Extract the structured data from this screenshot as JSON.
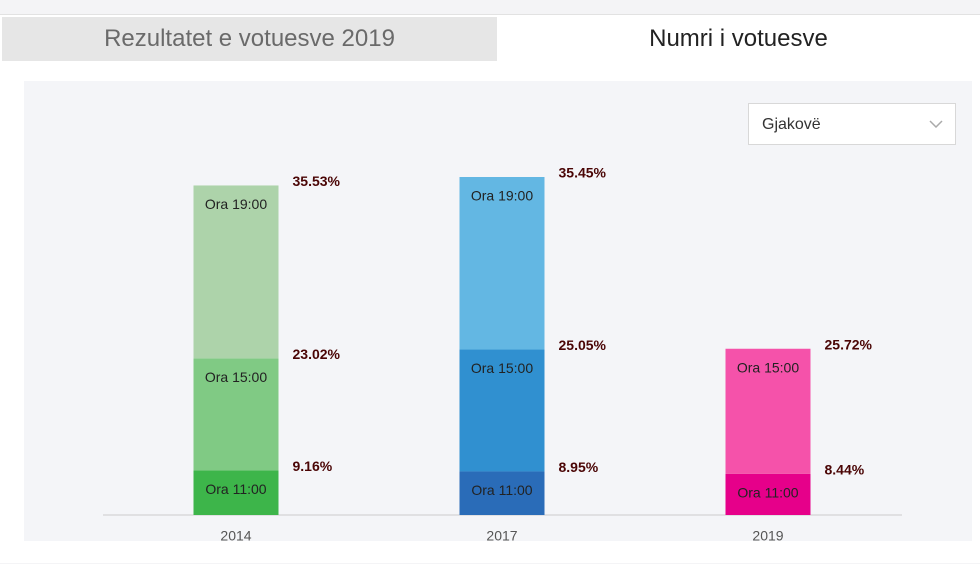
{
  "tabs": [
    "Rezultatet e votuesve 2019",
    "Numri i votuesve"
  ],
  "dropdown": "Gjakovë",
  "chart_data": {
    "type": "bar",
    "stacked": true,
    "categories": [
      "2014",
      "2017",
      "2019"
    ],
    "series": [
      {
        "name": "Ora 11:00",
        "colors": [
          "#3db54a",
          "#2a6cb8",
          "#e6008a"
        ],
        "values": [
          9.16,
          8.95,
          8.44
        ],
        "value_labels": [
          "9.16%",
          "8.95%",
          "8.44%"
        ]
      },
      {
        "name": "Ora 15:00",
        "colors": [
          "#80ca84",
          "#3090d0",
          "#f552aa"
        ],
        "values": [
          23.02,
          25.05,
          25.72
        ],
        "value_labels": [
          "23.02%",
          "25.05%",
          "25.72%"
        ]
      },
      {
        "name": "Ora 19:00",
        "colors": [
          "#add3aa",
          "#63b7e3",
          "#f552aa"
        ],
        "values": [
          35.53,
          35.45,
          null
        ],
        "value_labels": [
          "35.53%",
          "35.45%",
          null
        ]
      }
    ]
  }
}
